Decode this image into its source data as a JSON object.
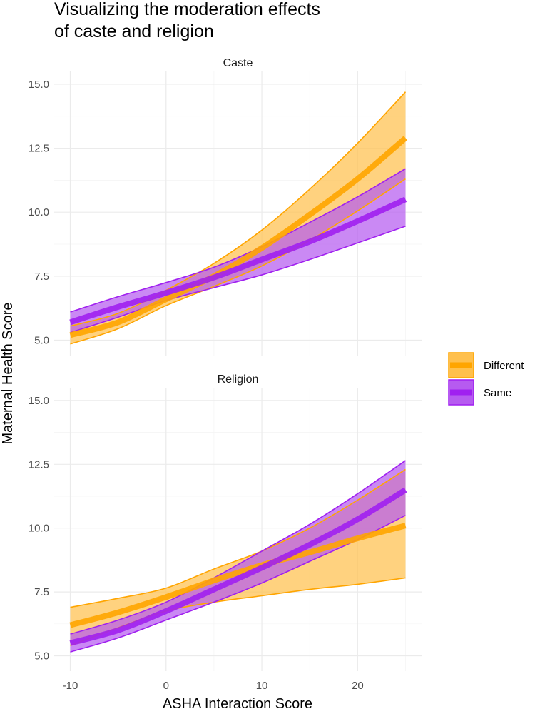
{
  "chart_data": {
    "type": "line",
    "title_lines": [
      "Visualizing the moderation effects",
      "of caste and religion"
    ],
    "xlabel": "ASHA Interaction Score",
    "ylabel": "Maternal Health Score",
    "xlim": [
      -11.75,
      26.75
    ],
    "ylim": [
      4.4,
      15.5
    ],
    "x_ticks": [
      -10,
      0,
      10,
      20
    ],
    "x_tick_labels": [
      "-10",
      "0",
      "10",
      "20"
    ],
    "y_ticks": [
      5,
      7.5,
      10,
      12.5,
      15
    ],
    "y_tick_labels": [
      "5.0",
      "7.5",
      "10.0",
      "12.5",
      "15.0"
    ],
    "x": [
      -10,
      -5,
      0,
      5,
      10,
      15,
      20,
      25
    ],
    "legend": {
      "position": "right",
      "entries": [
        {
          "label": "Different",
          "color": "#FFA500",
          "fill": "#FFC04D"
        },
        {
          "label": "Same",
          "color": "#A020F0",
          "fill": "#B65BF0"
        }
      ]
    },
    "panels": [
      {
        "label": "Caste",
        "series": [
          {
            "name": "Different",
            "values": [
              5.2,
              5.7,
              6.6,
              7.5,
              8.6,
              9.9,
              11.3,
              12.9
            ],
            "lower": [
              4.85,
              5.45,
              6.35,
              7.1,
              7.9,
              8.9,
              10.05,
              11.3
            ],
            "upper": [
              5.55,
              6.05,
              6.95,
              8.0,
              9.3,
              10.9,
              12.7,
              14.7
            ]
          },
          {
            "name": "Same",
            "values": [
              5.7,
              6.3,
              6.85,
              7.45,
              8.15,
              8.85,
              9.65,
              10.5
            ],
            "lower": [
              5.3,
              5.9,
              6.55,
              7.05,
              7.55,
              8.15,
              8.8,
              9.45
            ],
            "upper": [
              6.1,
              6.7,
              7.25,
              7.85,
              8.65,
              9.6,
              10.6,
              11.7
            ]
          }
        ]
      },
      {
        "label": "Religion",
        "series": [
          {
            "name": "Different",
            "values": [
              6.2,
              6.7,
              7.3,
              7.95,
              8.55,
              9.05,
              9.6,
              10.1
            ],
            "lower": [
              5.4,
              6.1,
              6.75,
              7.1,
              7.35,
              7.6,
              7.8,
              8.05
            ],
            "upper": [
              6.9,
              7.25,
              7.65,
              8.4,
              9.1,
              10.0,
              11.1,
              12.3
            ]
          },
          {
            "name": "Same",
            "values": [
              5.5,
              6.0,
              6.75,
              7.6,
              8.45,
              9.35,
              10.35,
              11.5
            ],
            "lower": [
              5.15,
              5.7,
              6.4,
              7.1,
              7.85,
              8.7,
              9.55,
              10.5
            ],
            "upper": [
              5.85,
              6.4,
              7.1,
              8.05,
              9.1,
              10.15,
              11.35,
              12.65
            ]
          }
        ]
      }
    ]
  }
}
